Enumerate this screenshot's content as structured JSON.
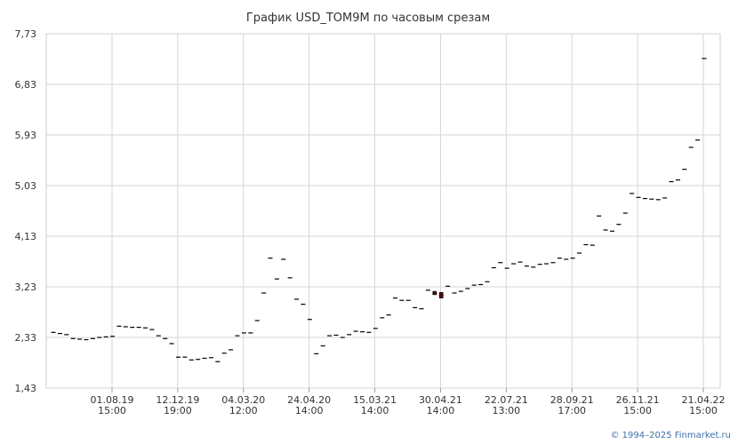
{
  "chart_data": {
    "type": "candlestick",
    "title": "График USD_TOM9M по часовым срезам",
    "xlabel": "",
    "ylabel": "",
    "ylim": [
      1.43,
      7.73
    ],
    "y_ticks": [
      "7,73",
      "6,83",
      "5,93",
      "5,03",
      "4,13",
      "3,23",
      "2,33",
      "1,43"
    ],
    "x_ticks": [
      {
        "date": "01.08.19",
        "time": "15:00"
      },
      {
        "date": "12.12.19",
        "time": "19:00"
      },
      {
        "date": "04.03.20",
        "time": "12:00"
      },
      {
        "date": "24.04.20",
        "time": "14:00"
      },
      {
        "date": "15.03.21",
        "time": "14:00"
      },
      {
        "date": "30.04.21",
        "time": "14:00"
      },
      {
        "date": "22.07.21",
        "time": "13:00"
      },
      {
        "date": "28.09.21",
        "time": "17:00"
      },
      {
        "date": "26.11.21",
        "time": "15:00"
      },
      {
        "date": "21.04.22",
        "time": "15:00"
      }
    ],
    "grid": true,
    "values": [
      2.42,
      2.4,
      2.38,
      2.31,
      2.3,
      2.29,
      2.31,
      2.33,
      2.34,
      2.35,
      2.53,
      2.52,
      2.51,
      2.51,
      2.5,
      2.47,
      2.36,
      2.31,
      2.22,
      1.98,
      1.98,
      1.93,
      1.94,
      1.96,
      1.97,
      1.9,
      2.05,
      2.11,
      2.36,
      2.41,
      2.41,
      2.63,
      3.12,
      3.74,
      3.37,
      3.72,
      3.39,
      3.01,
      2.92,
      2.65,
      2.04,
      2.18,
      2.36,
      2.37,
      2.33,
      2.38,
      2.44,
      2.43,
      2.42,
      2.49,
      2.68,
      2.73,
      3.03,
      2.99,
      2.99,
      2.86,
      2.84,
      3.17,
      3.11,
      3.08,
      3.24,
      3.12,
      3.15,
      3.2,
      3.26,
      3.27,
      3.32,
      3.57,
      3.66,
      3.56,
      3.64,
      3.67,
      3.6,
      3.58,
      3.63,
      3.64,
      3.66,
      3.74,
      3.72,
      3.74,
      3.83,
      3.98,
      3.97,
      4.49,
      4.24,
      4.22,
      4.34,
      4.54,
      4.89,
      4.82,
      4.8,
      4.79,
      4.78,
      4.81,
      5.1,
      5.13,
      5.32,
      5.71,
      5.84,
      7.29
    ],
    "highlight_candles": [
      {
        "index": 58,
        "open": 3.15,
        "close": 3.09
      },
      {
        "index": 59,
        "open": 3.13,
        "close": 3.03
      }
    ]
  },
  "footer": {
    "copyright": "© 1994–2025 Finmarket.ru"
  }
}
